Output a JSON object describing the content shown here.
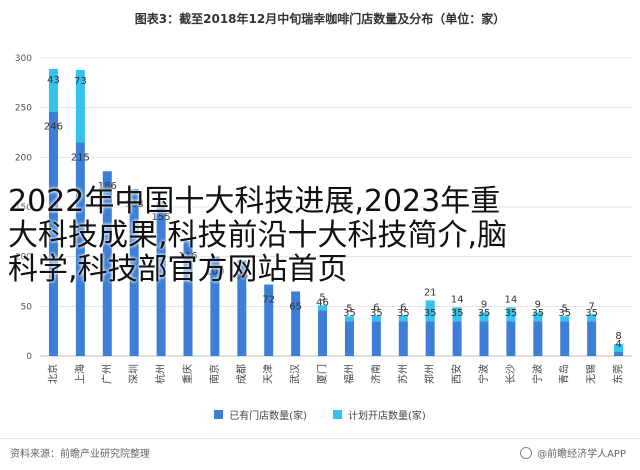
{
  "chart_data": {
    "type": "bar",
    "title": "图表3：截至2018年12月中旬瑞幸咖啡门店数量及分布（单位：家）",
    "ylim": [
      0,
      300
    ],
    "yticks": [
      0,
      50,
      100,
      150,
      200,
      250,
      300
    ],
    "grid": true,
    "stacked": true,
    "legend_position": "bottom",
    "categories": [
      "北京",
      "上海",
      "广州",
      "深圳",
      "杭州",
      "重庆",
      "南京",
      "成都",
      "天津",
      "武汉",
      "厦门",
      "福州",
      "济南",
      "苏州",
      "郑州",
      "西安",
      "宁波",
      "长沙",
      "宁波",
      "青岛",
      "无锡",
      "东莞"
    ],
    "series": [
      {
        "name": "已有门店数量(家)",
        "color": "#3d7fd6",
        "values": [
          246,
          215,
          186,
          168,
          155,
          116,
          100,
          96,
          72,
          65,
          46,
          35,
          35,
          35,
          35,
          35,
          35,
          35,
          35,
          35,
          35,
          4
        ]
      },
      {
        "name": "计划开店数量(家)",
        "color": "#33c3ec",
        "values": [
          43,
          73,
          0,
          0,
          0,
          0,
          0,
          0,
          0,
          0,
          5,
          5,
          6,
          6,
          21,
          14,
          9,
          14,
          9,
          5,
          7,
          8
        ]
      }
    ],
    "data_labels": {
      "existing": [
        "246",
        "215",
        "186",
        "168",
        "155",
        "116",
        "100",
        "96",
        "72",
        "65",
        "46",
        "35",
        "35",
        "35",
        "35",
        "35",
        "35",
        "35",
        "35",
        "35",
        "35",
        "4"
      ],
      "planned": [
        "43",
        "73",
        "",
        "",
        "",
        "",
        "",
        "",
        "",
        "",
        "5",
        "5",
        "6",
        "6",
        "21",
        "14",
        "9",
        "14",
        "9",
        "5",
        "7",
        "8"
      ]
    }
  },
  "overlay_text": "2022年中国十大科技进展,2023年重大科技成果,科技前沿十大科技简介,脑科学,科技部官方网站首页",
  "footer": {
    "source": "资料来源：前瞻产业研究院整理",
    "brand": "@前瞻经济学人APP"
  }
}
